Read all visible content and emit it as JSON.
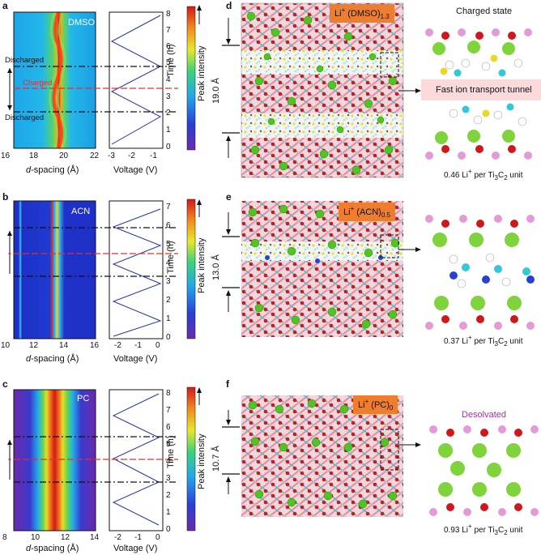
{
  "figure": {
    "panel_labels": [
      "a",
      "b",
      "c",
      "d",
      "e",
      "f"
    ],
    "colorbar_label": "Peak intensity",
    "voltage_axis_label": "Voltage (V)",
    "time_axis_label": "Time (h)",
    "dspacing_axis_label_italic": "d",
    "dspacing_axis_label_rest": "-spacing (Å)"
  },
  "panels": {
    "a": {
      "solvent": "DMSO",
      "annotations": [
        "Discharged",
        "Charged",
        "Discharged"
      ],
      "x_ticks": [
        "16",
        "18",
        "20",
        "22"
      ],
      "volt_ticks": [
        "-3",
        "-2",
        "-1"
      ],
      "time_ticks": [
        "0",
        "1",
        "2",
        "3",
        "4",
        "5",
        "6",
        "7",
        "8"
      ]
    },
    "b": {
      "solvent": "ACN",
      "x_ticks": [
        "10",
        "12",
        "14",
        "16"
      ],
      "volt_ticks": [
        "-2",
        "-1",
        "0"
      ],
      "time_ticks": [
        "0",
        "1",
        "2",
        "3",
        "4",
        "5",
        "6",
        "7"
      ]
    },
    "c": {
      "solvent": "PC",
      "x_ticks": [
        "8",
        "10",
        "12",
        "14"
      ],
      "volt_ticks": [
        "-2",
        "-1",
        "0"
      ],
      "time_ticks": [
        "0",
        "1",
        "2",
        "3",
        "4",
        "5",
        "6",
        "7",
        "8"
      ]
    },
    "d": {
      "box_main": "Li",
      "box_sup": "+",
      "box_rest": " (DMSO)",
      "box_sub": "1.3",
      "spacing": "19.0 Å",
      "zoom_title": "Charged state",
      "tunnel_label": "Fast ion transport tunnel",
      "caption_pre": "0.46 Li",
      "caption_sup": "+",
      "caption_mid": " per Ti",
      "caption_sub1": "3",
      "caption_c": "C",
      "caption_sub2": "2",
      "caption_end": " unit"
    },
    "e": {
      "box_main": "Li",
      "box_sup": "+",
      "box_rest": " (ACN)",
      "box_sub": "0.5",
      "spacing": "13.0 Å",
      "caption_pre": "0.37 Li",
      "caption_sup": "+",
      "caption_mid": " per Ti",
      "caption_sub1": "3",
      "caption_c": "C",
      "caption_sub2": "2",
      "caption_end": " unit"
    },
    "f": {
      "box_main": "Li",
      "box_sup": "+",
      "box_rest": " (PC)",
      "box_sub": "0",
      "spacing": "10.7 Å",
      "zoom_title": "Desolvated",
      "caption_pre": "0.93 Li",
      "caption_sup": "+",
      "caption_mid": " per Ti",
      "caption_sub1": "3",
      "caption_c": "C",
      "caption_sub2": "2",
      "caption_end": " unit"
    }
  },
  "colors": {
    "dash_black": "#111111",
    "dash_red": "#e03131",
    "voltage_line": "#2233aa",
    "orange_box": "#ee7d2d",
    "li_green": "#4fc422",
    "oxygen_red": "#d0181c",
    "ti_pink": "#e59ab0",
    "c_cyan": "#32c8d8",
    "desolvated_purple": "#a030b0"
  }
}
